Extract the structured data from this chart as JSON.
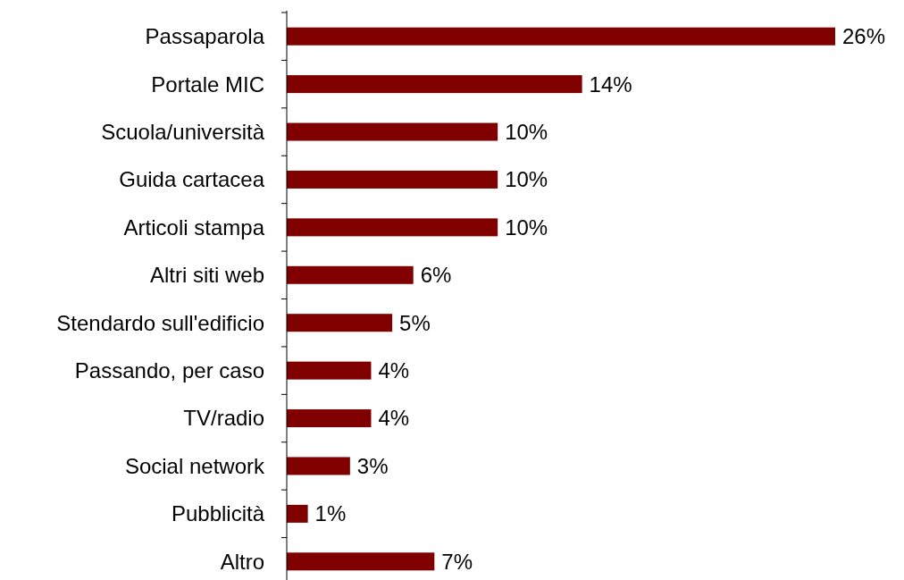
{
  "chart_data": {
    "type": "bar",
    "orientation": "horizontal",
    "categories": [
      "Passaparola",
      "Portale MIC",
      "Scuola/università",
      "Guida cartacea",
      "Articoli stampa",
      "Altri siti web",
      "Stendardo sull'edificio",
      "Passando, per caso",
      "TV/radio",
      "Social network",
      "Pubblicità",
      "Altro"
    ],
    "values": [
      26,
      14,
      10,
      10,
      10,
      6,
      5,
      4,
      4,
      3,
      1,
      7
    ],
    "value_labels": [
      "26%",
      "14%",
      "10%",
      "10%",
      "10%",
      "6%",
      "5%",
      "4%",
      "4%",
      "3%",
      "1%",
      "7%"
    ],
    "color": "#800000"
  }
}
